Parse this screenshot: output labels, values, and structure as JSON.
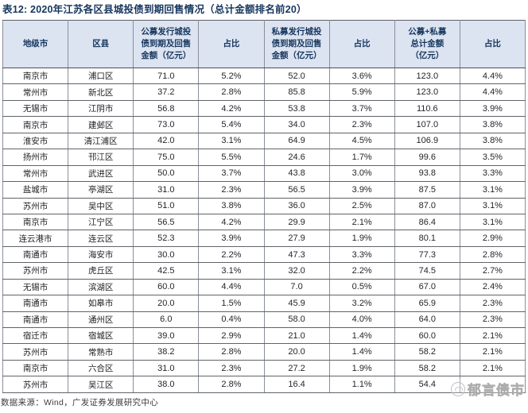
{
  "title": "表12:  2020年江苏各区县城投债到期回售情况（总计金额排名前20）",
  "footer": {
    "source": "数据来源：Wind，广发证券发展研究中心"
  },
  "watermark": {
    "text": "郁言债市",
    "logo": "panda-circle-logo"
  },
  "colors": {
    "title_text": "#17375e",
    "header_bg": "#dce3f1",
    "header_text": "#17375e",
    "body_text": "#262626",
    "grid_line": "#8a8f99",
    "watermark": "#bdbdbd"
  },
  "table": {
    "headers": [
      "地级市",
      "区县",
      "公募发行城投\n债到期及回售\n金额（亿元）",
      "占比",
      "私募发行城投\n债到期及回售\n金额（亿元）",
      "占比",
      "公募+私募\n总计金额\n（亿元）",
      "占比"
    ],
    "rows": [
      [
        "南京市",
        "浦口区",
        "71.0",
        "5.2%",
        "52.0",
        "3.6%",
        "123.0",
        "4.4%"
      ],
      [
        "常州市",
        "新北区",
        "37.2",
        "2.8%",
        "85.8",
        "5.9%",
        "123.0",
        "4.4%"
      ],
      [
        "无锡市",
        "江阴市",
        "56.8",
        "4.2%",
        "53.8",
        "3.7%",
        "110.6",
        "3.9%"
      ],
      [
        "南京市",
        "建邺区",
        "73.0",
        "5.4%",
        "34.0",
        "2.3%",
        "107.0",
        "3.8%"
      ],
      [
        "淮安市",
        "清江浦区",
        "42.0",
        "3.1%",
        "64.9",
        "4.5%",
        "106.9",
        "3.8%"
      ],
      [
        "扬州市",
        "邗江区",
        "75.0",
        "5.5%",
        "24.6",
        "1.7%",
        "99.6",
        "3.5%"
      ],
      [
        "常州市",
        "武进区",
        "50.0",
        "3.7%",
        "43.8",
        "3.0%",
        "93.8",
        "3.3%"
      ],
      [
        "盐城市",
        "亭湖区",
        "31.0",
        "2.3%",
        "56.5",
        "3.9%",
        "87.5",
        "3.1%"
      ],
      [
        "苏州市",
        "吴中区",
        "51.0",
        "3.8%",
        "36.0",
        "2.5%",
        "87.0",
        "3.1%"
      ],
      [
        "南京市",
        "江宁区",
        "56.5",
        "4.2%",
        "29.9",
        "2.1%",
        "86.4",
        "3.1%"
      ],
      [
        "连云港市",
        "连云区",
        "52.3",
        "3.9%",
        "27.9",
        "1.9%",
        "80.1",
        "2.9%"
      ],
      [
        "南通市",
        "海安市",
        "30.0",
        "2.2%",
        "47.3",
        "3.3%",
        "77.3",
        "2.8%"
      ],
      [
        "苏州市",
        "虎丘区",
        "42.5",
        "3.1%",
        "32.0",
        "2.2%",
        "74.5",
        "2.7%"
      ],
      [
        "无锡市",
        "滨湖区",
        "60.0",
        "4.4%",
        "7.0",
        "0.5%",
        "67.0",
        "2.4%"
      ],
      [
        "南通市",
        "如皋市",
        "20.0",
        "1.5%",
        "45.9",
        "3.2%",
        "65.9",
        "2.3%"
      ],
      [
        "南通市",
        "通州区",
        "6.0",
        "0.4%",
        "58.0",
        "4.0%",
        "64.0",
        "2.3%"
      ],
      [
        "宿迁市",
        "宿城区",
        "39.0",
        "2.9%",
        "21.0",
        "1.4%",
        "60.0",
        "2.1%"
      ],
      [
        "苏州市",
        "常熟市",
        "38.2",
        "2.8%",
        "20.0",
        "1.4%",
        "58.2",
        "2.1%"
      ],
      [
        "南京市",
        "六合区",
        "31.0",
        "2.3%",
        "27.2",
        "1.9%",
        "58.2",
        "2.1%"
      ],
      [
        "苏州市",
        "吴江区",
        "38.0",
        "2.8%",
        "16.4",
        "1.1%",
        "54.4",
        ""
      ]
    ]
  }
}
